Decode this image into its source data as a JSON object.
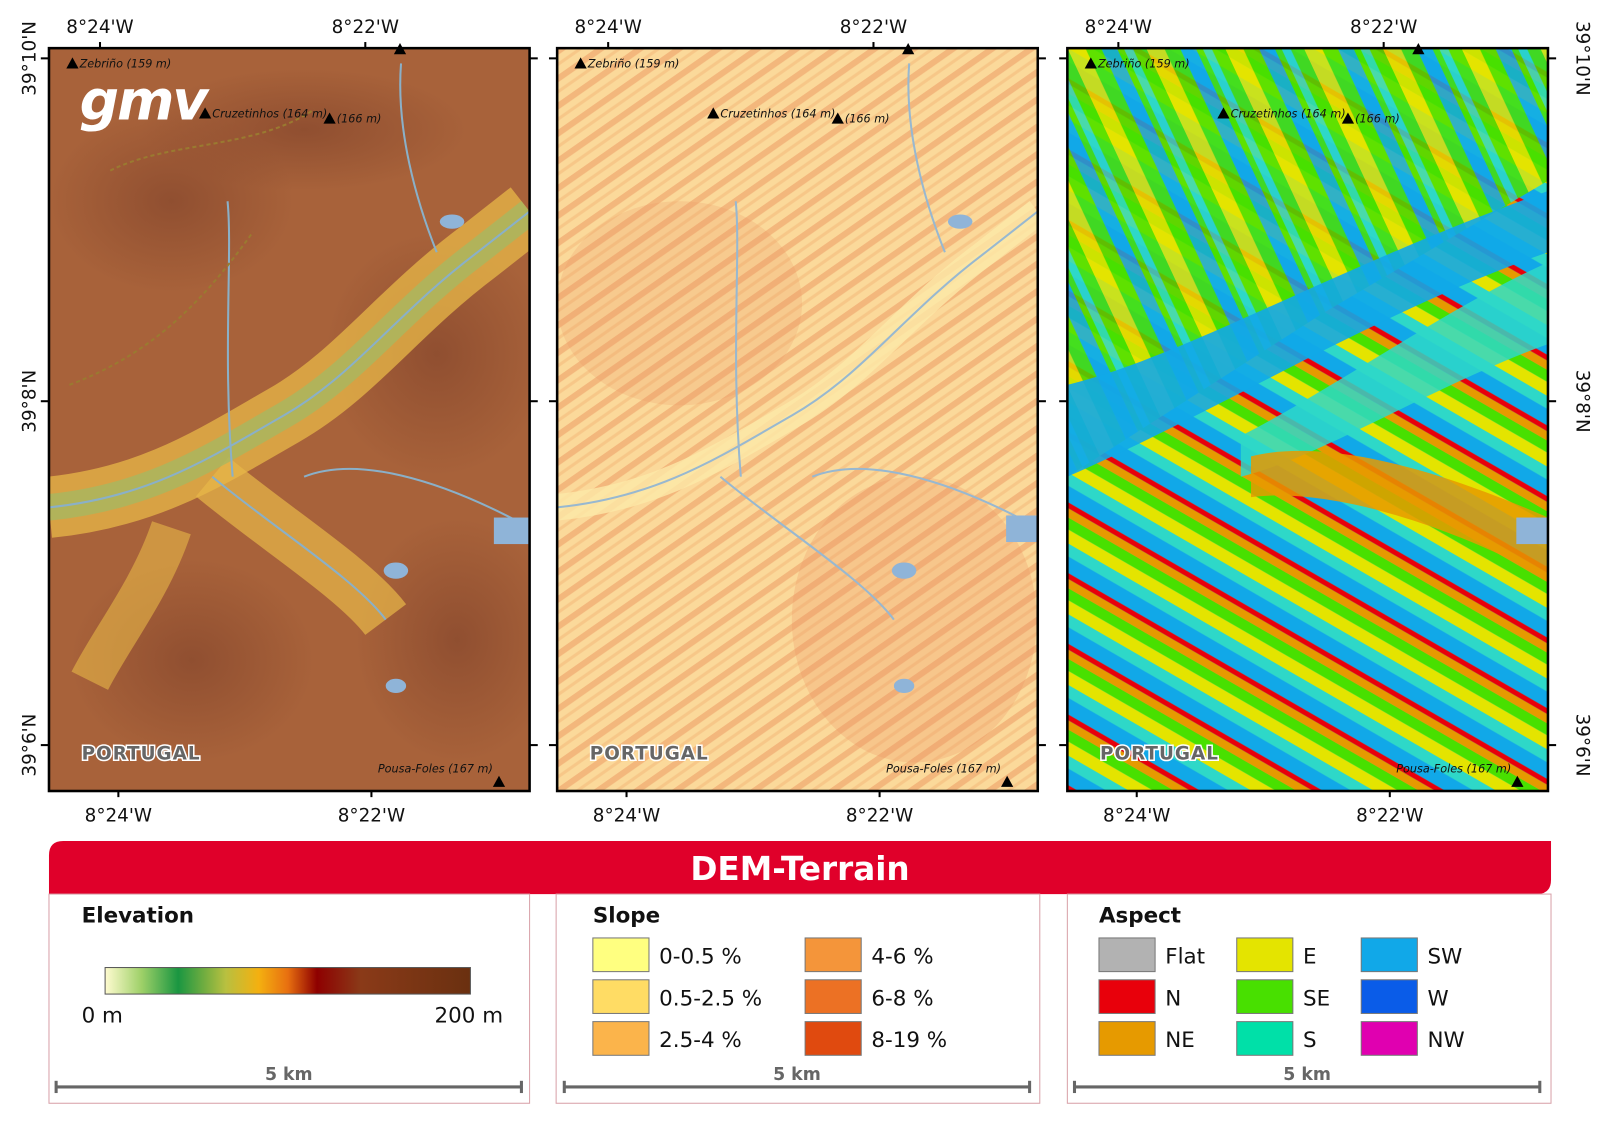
{
  "logo": "gmv",
  "banner": "DEM-Terrain",
  "maps": [
    {
      "top_labels": [
        "8°24'W",
        "8°22'W"
      ],
      "bottom_labels": [
        "8°24'W",
        "8°22'W"
      ],
      "side_labels": [
        "39°10'N",
        "39°8'N",
        "39°6'N"
      ],
      "places": [
        "Zebriño (159 m)",
        "Cruzetinhos (164 m)",
        "(166 m)",
        "Pousa-Foles (167 m)"
      ],
      "country": "PORTUGAL"
    },
    {
      "top_labels": [
        "8°24'W",
        "8°22'W"
      ],
      "bottom_labels": [
        "8°24'W",
        "8°22'W"
      ],
      "places": [
        "Zebriño (159 m)",
        "Cruzetinhos (164 m)",
        "(166 m)",
        "Pousa-Foles (167 m)"
      ],
      "country": "PORTUGAL"
    },
    {
      "top_labels": [
        "8°24'W",
        "8°22'W"
      ],
      "bottom_labels": [
        "8°24'W",
        "8°22'W"
      ],
      "side_labels": [
        "39°10'N",
        "39°8'N",
        "39°6'N"
      ],
      "places": [
        "Zebriño (159 m)",
        "Cruzetinhos (164 m)",
        "(166 m)",
        "Pousa-Foles (167 m)"
      ],
      "country": "PORTUGAL"
    }
  ],
  "legends": [
    {
      "title": "Elevation",
      "min_label": "0 m",
      "max_label": "200 m",
      "scale": "5 km"
    },
    {
      "title": "Slope",
      "classes": [
        {
          "label": "0-0.5 %",
          "color": "#ffff80"
        },
        {
          "label": "0.5-2.5 %",
          "color": "#ffdc64"
        },
        {
          "label": "2.5-4 %",
          "color": "#fbb44b"
        },
        {
          "label": "4-6 %",
          "color": "#f4953a"
        },
        {
          "label": "6-8 %",
          "color": "#ec7124"
        },
        {
          "label": "8-19 %",
          "color": "#e04a0f"
        }
      ],
      "scale": "5 km"
    },
    {
      "title": "Aspect",
      "classes": [
        {
          "label": "Flat",
          "color": "#b2b2b2"
        },
        {
          "label": "N",
          "color": "#e8000b"
        },
        {
          "label": "NE",
          "color": "#e69a00"
        },
        {
          "label": "E",
          "color": "#e4e400"
        },
        {
          "label": "SE",
          "color": "#48e000"
        },
        {
          "label": "S",
          "color": "#00e0a8"
        },
        {
          "label": "SW",
          "color": "#11a8e8"
        },
        {
          "label": "W",
          "color": "#0a5ce8"
        },
        {
          "label": "NW",
          "color": "#e000b0"
        }
      ],
      "scale": "5 km"
    }
  ]
}
